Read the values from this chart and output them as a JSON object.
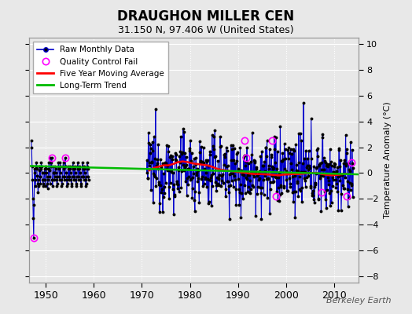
{
  "title": "DRAUGHON MILLER CEN",
  "subtitle": "31.150 N, 97.406 W (United States)",
  "ylabel_right": "Temperature Anomaly (°C)",
  "watermark": "Berkeley Earth",
  "xlim": [
    1946.5,
    2015
  ],
  "ylim": [
    -8.5,
    10.5
  ],
  "yticks": [
    -8,
    -6,
    -4,
    -2,
    0,
    2,
    4,
    6,
    8,
    10
  ],
  "xticks": [
    1950,
    1960,
    1970,
    1980,
    1990,
    2000,
    2010
  ],
  "bg_color": "#e8e8e8",
  "plot_bg_color": "#e8e8e8",
  "grid_color": "#ffffff",
  "raw_line_color": "#0000cc",
  "raw_dot_color": "#000000",
  "qc_color": "#ff00ff",
  "moving_avg_color": "#ff0000",
  "trend_color": "#00bb00",
  "legend_labels": [
    "Raw Monthly Data",
    "Quality Control Fail",
    "Five Year Moving Average",
    "Long-Term Trend"
  ],
  "trend_t": [
    1946.5,
    2015.0
  ],
  "trend_v": [
    0.55,
    -0.1
  ],
  "moving_avg_t": [
    1971.5,
    1972.5,
    1973.5,
    1974.5,
    1975.5,
    1976.5,
    1977.5,
    1978.5,
    1979.5,
    1980.5,
    1981.5,
    1982.5,
    1983.5,
    1984.5,
    1985.5,
    1986.5,
    1987.5,
    1988.5,
    1989.5,
    1990.5,
    1991.5,
    1992.5,
    1993.5,
    1994.5,
    1995.5,
    1996.5,
    1997.5,
    1998.5,
    1999.5,
    2000.5,
    2001.5,
    2002.5,
    2003.5,
    2004.5,
    2005.5,
    2006.5,
    2007.5,
    2008.5,
    2009.5,
    2010.5,
    2011.5,
    2012.5
  ],
  "moving_avg_v": [
    0.2,
    0.4,
    0.5,
    0.6,
    0.6,
    0.7,
    0.85,
    0.9,
    0.85,
    0.75,
    0.7,
    0.65,
    0.6,
    0.5,
    0.35,
    0.25,
    0.2,
    0.15,
    0.1,
    0.05,
    0.02,
    -0.05,
    -0.08,
    -0.08,
    -0.1,
    -0.12,
    -0.15,
    -0.18,
    -0.12,
    -0.1,
    -0.08,
    -0.08,
    -0.05,
    -0.02,
    0.0,
    -0.02,
    -0.08,
    -0.15,
    -0.18,
    -0.15,
    -0.1,
    -0.05
  ],
  "early_segment_t": [
    1947.0,
    1947.083,
    1947.167,
    1947.25,
    1947.333,
    1947.417,
    1947.5,
    1947.583,
    1947.667,
    1947.75,
    1947.833,
    1947.917,
    1948.0,
    1948.083,
    1948.167,
    1948.25,
    1948.333,
    1948.417,
    1948.5,
    1948.583,
    1948.667,
    1948.75,
    1948.833,
    1948.917,
    1949.0,
    1949.083,
    1949.167,
    1949.25,
    1949.333,
    1949.417,
    1949.5,
    1949.583,
    1949.667,
    1949.75,
    1949.833,
    1949.917,
    1950.0,
    1950.083,
    1950.167,
    1950.25,
    1950.333,
    1950.417,
    1950.5,
    1950.583,
    1950.667,
    1950.75,
    1950.833,
    1950.917,
    1951.0,
    1951.083,
    1951.167,
    1951.25,
    1951.333,
    1951.417,
    1951.5,
    1951.583,
    1951.667,
    1951.75,
    1951.833,
    1951.917,
    1952.0,
    1952.083,
    1952.167,
    1952.25,
    1952.333,
    1952.417,
    1952.5,
    1952.583,
    1952.667,
    1952.75,
    1952.833,
    1952.917,
    1953.0,
    1953.083,
    1953.167,
    1953.25,
    1953.333,
    1953.417,
    1953.5,
    1953.583,
    1953.667,
    1953.75,
    1953.833,
    1953.917,
    1954.0,
    1954.083,
    1954.167,
    1954.25,
    1954.333,
    1954.417,
    1954.5,
    1954.583,
    1954.667,
    1954.75,
    1954.833,
    1954.917,
    1955.0,
    1955.083,
    1955.167,
    1955.25,
    1955.333,
    1955.417,
    1955.5,
    1955.583,
    1955.667,
    1955.75,
    1955.833,
    1955.917,
    1956.0,
    1956.083,
    1956.167,
    1956.25,
    1956.333,
    1956.417,
    1956.5,
    1956.583,
    1956.667,
    1956.75,
    1956.833,
    1956.917,
    1957.0,
    1957.083,
    1957.167,
    1957.25,
    1957.333,
    1957.417,
    1957.5,
    1957.583,
    1957.667,
    1957.75,
    1957.833,
    1957.917,
    1958.0,
    1958.083,
    1958.167,
    1958.25,
    1958.333,
    1958.417,
    1958.5,
    1958.583,
    1958.667,
    1958.75,
    1958.833,
    1958.917
  ],
  "early_segment_v": [
    2.5,
    2.0,
    0.5,
    -0.5,
    -2.0,
    -3.5,
    -5.0,
    -2.5,
    0.3,
    0.0,
    -0.5,
    -1.0,
    0.5,
    0.8,
    0.3,
    -0.2,
    -0.8,
    -1.5,
    -1.0,
    -0.5,
    0.2,
    0.5,
    -0.3,
    -0.8,
    0.3,
    0.8,
    0.5,
    0.0,
    -0.5,
    -1.0,
    -0.8,
    -0.5,
    0.0,
    0.3,
    -0.5,
    -1.0,
    0.5,
    0.3,
    0.0,
    -0.3,
    -0.8,
    -1.2,
    -0.5,
    0.3,
    0.8,
    0.2,
    -0.3,
    -0.8,
    1.2,
    0.8,
    0.5,
    1.2,
    -0.5,
    -1.0,
    -0.5,
    0.0,
    0.5,
    0.0,
    -0.5,
    -0.3,
    0.5,
    0.3,
    0.0,
    -0.5,
    -1.0,
    -0.8,
    -0.3,
    0.5,
    0.8,
    0.3,
    -0.3,
    -0.5,
    0.8,
    0.5,
    0.0,
    -0.5,
    -1.0,
    -0.8,
    -0.3,
    0.5,
    0.8,
    0.3,
    -0.3,
    -0.5,
    0.5,
    1.2,
    0.5,
    0.0,
    -0.5,
    -1.0,
    -0.8,
    -0.3,
    0.5,
    0.3,
    -0.3,
    -0.5,
    0.5,
    0.3,
    0.0,
    -0.5,
    -1.0,
    -0.8,
    -0.3,
    0.5,
    0.8,
    0.3,
    -0.3,
    -0.5,
    0.5,
    0.3,
    0.0,
    -0.5,
    -1.0,
    -0.8,
    -0.3,
    0.5,
    0.8,
    0.3,
    -0.3,
    -0.5,
    0.5,
    0.3,
    0.0,
    -0.5,
    -1.0,
    -0.8,
    -0.3,
    0.5,
    0.8,
    0.3,
    -0.3,
    -0.5,
    0.5,
    0.3,
    0.0,
    -0.5,
    -1.0,
    -0.8,
    -0.3,
    0.5,
    0.8,
    0.3,
    -0.3,
    -0.5
  ],
  "qc_fail_t": [
    1947.5,
    1951.25,
    1954.083,
    1991.333,
    1991.583,
    1997.0,
    1997.833,
    2007.333,
    2012.583,
    2013.583
  ],
  "qc_fail_v": [
    -5.0,
    1.2,
    1.2,
    2.5,
    1.2,
    2.5,
    -1.8,
    -1.5,
    -1.8,
    0.8
  ]
}
